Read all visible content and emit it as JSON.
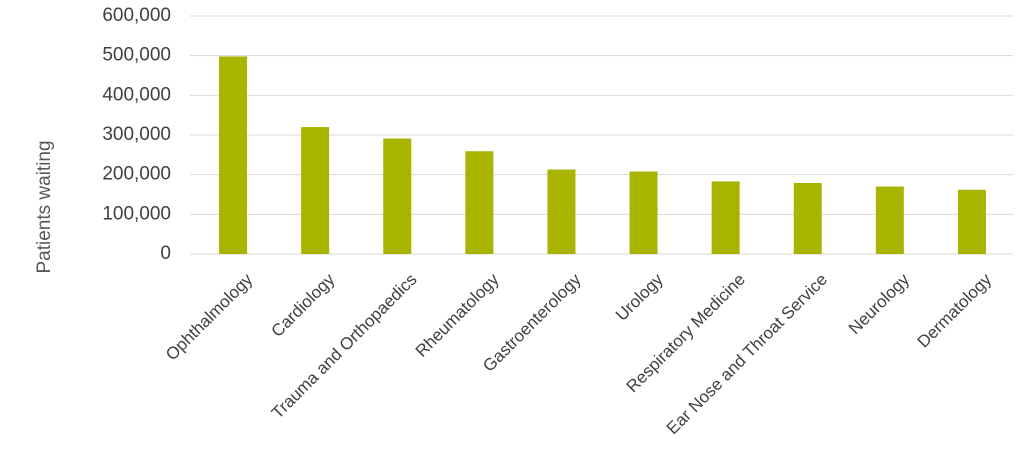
{
  "chart_data": {
    "type": "bar",
    "title": "",
    "xlabel": "",
    "ylabel": "Patients waiting",
    "ylim": [
      0,
      600000
    ],
    "yticks": [
      0,
      100000,
      200000,
      300000,
      400000,
      500000,
      600000
    ],
    "ytick_labels": [
      "0",
      "100,000",
      "200,000",
      "300,000",
      "400,000",
      "500,000",
      "600,000"
    ],
    "categories": [
      "Ophthalmology",
      "Cardiology",
      "Trauma and Orthopaedics",
      "Rheumatology",
      "Gastroenterology",
      "Urology",
      "Respiratory Medicine",
      "Ear Nose and Throat Service",
      "Neurology",
      "Dermatology"
    ],
    "values": [
      498000,
      320000,
      291000,
      259000,
      213000,
      208000,
      183000,
      179000,
      170000,
      162000
    ],
    "grid": true,
    "legend": "none",
    "bar_color": "#a8b400",
    "grid_color": "#d9d9d9"
  }
}
